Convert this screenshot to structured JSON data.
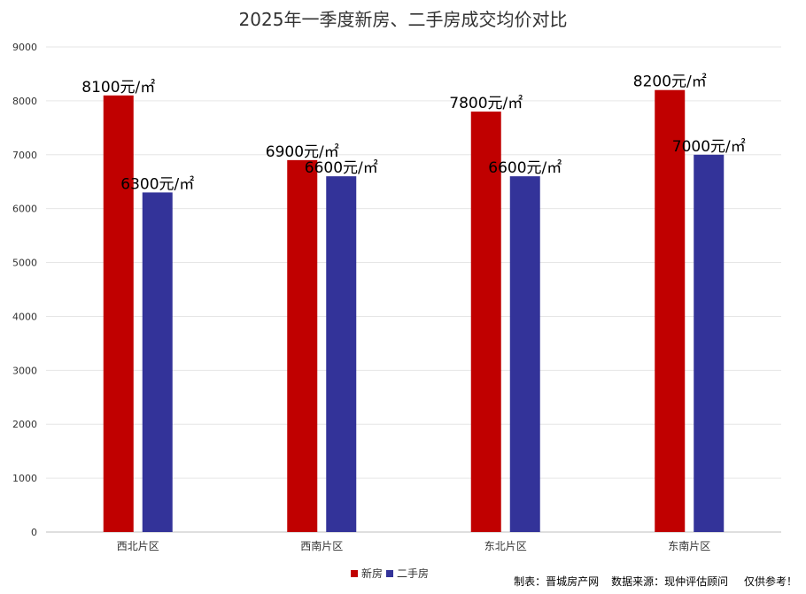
{
  "title": "2025年一季度新房、二手房成交均价对比",
  "colors": {
    "new": "#c00000",
    "second": "#333399",
    "grid": "#e6e6e6",
    "axis": "#bfbfbf",
    "text": "#333333"
  },
  "legend": {
    "new_label": "新房",
    "second_label": "二手房"
  },
  "footer": {
    "author": "制表：晋城房产网",
    "source": "数据来源：现仲评估顾问",
    "note": "仅供参考！"
  },
  "chart_data": {
    "type": "bar",
    "title": "2025年一季度新房、二手房成交均价对比",
    "categories": [
      "西北片区",
      "西南片区",
      "东北片区",
      "东南片区"
    ],
    "series": [
      {
        "name": "新房",
        "values": [
          8100,
          6900,
          7800,
          8200
        ],
        "labels": [
          "8100元/㎡",
          "6900元/㎡",
          "7800元/㎡",
          "8200元/㎡"
        ]
      },
      {
        "name": "二手房",
        "values": [
          6300,
          6600,
          6600,
          7000
        ],
        "labels": [
          "6300元/㎡",
          "6600元/㎡",
          "6600元/㎡",
          "7000元/㎡"
        ]
      }
    ],
    "ylim": [
      0,
      9000
    ],
    "yticks": [
      0,
      1000,
      2000,
      3000,
      4000,
      5000,
      6000,
      7000,
      8000,
      9000
    ],
    "grid": true,
    "legend_position": "bottom"
  }
}
